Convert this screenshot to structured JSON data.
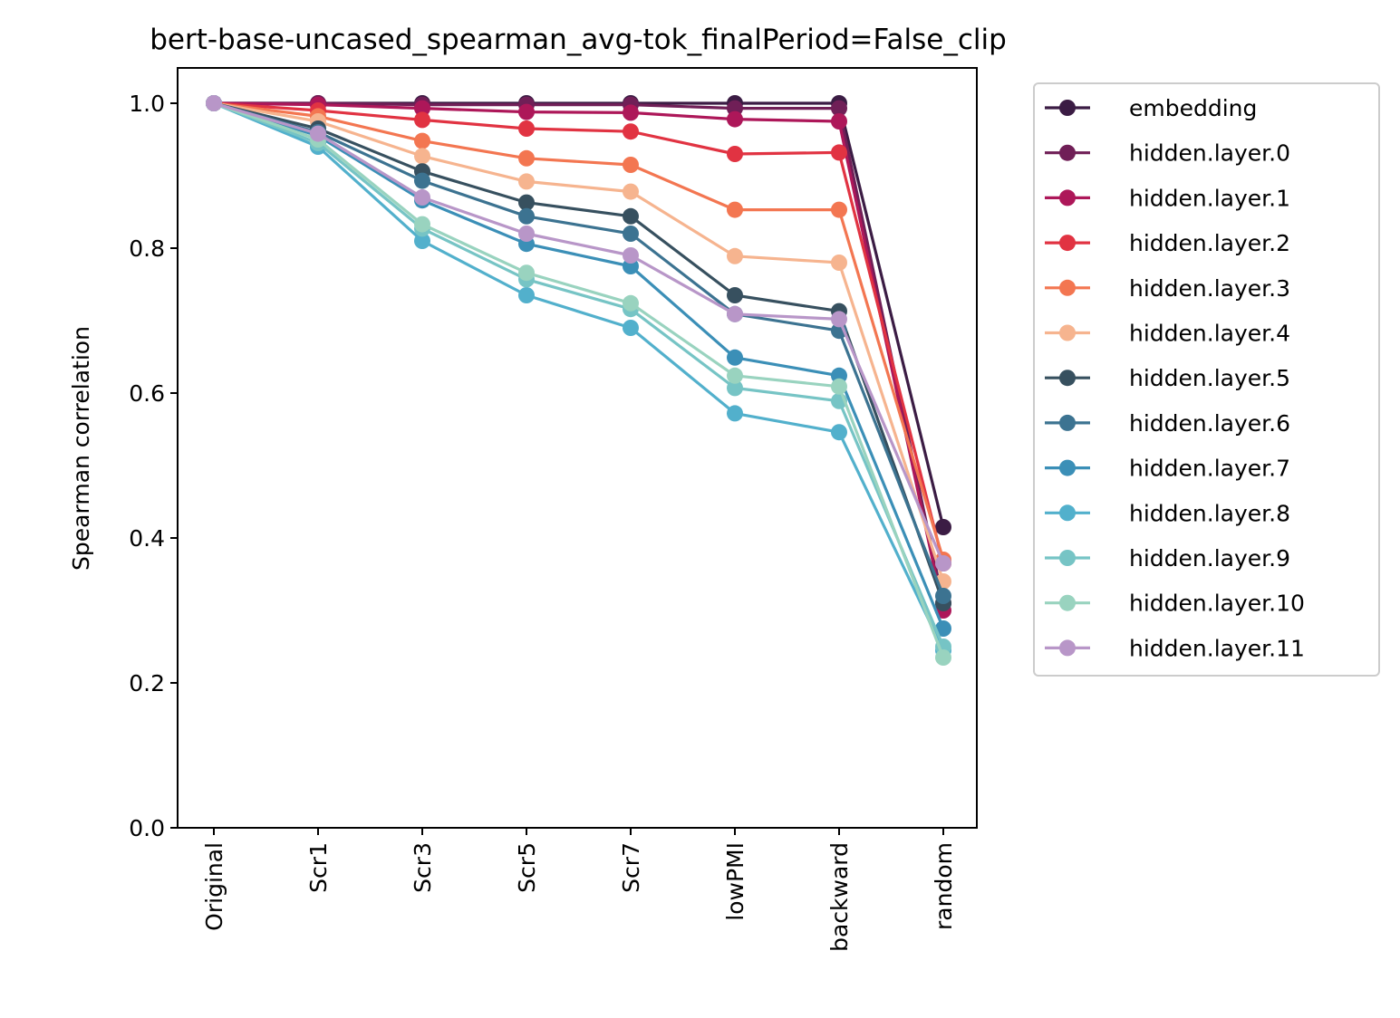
{
  "chart_data": {
    "type": "line",
    "title": "bert-base-uncased_spearman_avg-tok_finalPeriod=False_clip",
    "xlabel": "",
    "ylabel": "Spearman correlation",
    "categories": [
      "Original",
      "Scr1",
      "Scr3",
      "Scr5",
      "Scr7",
      "lowPMI",
      "backward",
      "random"
    ],
    "ylim": [
      0,
      1.05
    ],
    "yticks": [
      0.0,
      0.2,
      0.4,
      0.6,
      0.8,
      1.0
    ],
    "ytick_labels": [
      "0.0",
      "0.2",
      "0.4",
      "0.6",
      "0.8",
      "1.0"
    ],
    "grid": false,
    "legend_position": "outside-right",
    "marker": "circle",
    "series": [
      {
        "name": "embedding",
        "color": "#3b1c44",
        "values": [
          1.0,
          1.0,
          1.0,
          1.0,
          1.0,
          1.0,
          1.0,
          0.415
        ]
      },
      {
        "name": "hidden.layer.0",
        "color": "#701f57",
        "values": [
          1.0,
          1.0,
          0.998,
          0.998,
          0.998,
          0.993,
          0.993,
          0.31
        ]
      },
      {
        "name": "hidden.layer.1",
        "color": "#ad1759",
        "values": [
          1.0,
          0.998,
          0.993,
          0.988,
          0.987,
          0.978,
          0.975,
          0.3
        ]
      },
      {
        "name": "hidden.layer.2",
        "color": "#e13342",
        "values": [
          1.0,
          0.99,
          0.977,
          0.965,
          0.961,
          0.93,
          0.932,
          0.365
        ]
      },
      {
        "name": "hidden.layer.3",
        "color": "#f37651",
        "values": [
          1.0,
          0.982,
          0.948,
          0.924,
          0.915,
          0.853,
          0.853,
          0.37
        ]
      },
      {
        "name": "hidden.layer.4",
        "color": "#f6b48f",
        "values": [
          1.0,
          0.975,
          0.927,
          0.892,
          0.878,
          0.789,
          0.78,
          0.34
        ]
      },
      {
        "name": "hidden.layer.5",
        "color": "#37505f",
        "values": [
          1.0,
          0.965,
          0.906,
          0.863,
          0.844,
          0.735,
          0.713,
          0.31
        ]
      },
      {
        "name": "hidden.layer.6",
        "color": "#3c7391",
        "values": [
          1.0,
          0.96,
          0.893,
          0.844,
          0.82,
          0.709,
          0.686,
          0.32
        ]
      },
      {
        "name": "hidden.layer.7",
        "color": "#3b8fb7",
        "values": [
          1.0,
          0.955,
          0.866,
          0.806,
          0.775,
          0.649,
          0.624,
          0.275
        ]
      },
      {
        "name": "hidden.layer.8",
        "color": "#52b0cc",
        "values": [
          1.0,
          0.94,
          0.81,
          0.735,
          0.69,
          0.572,
          0.546,
          0.245
        ]
      },
      {
        "name": "hidden.layer.9",
        "color": "#76c4c5",
        "values": [
          1.0,
          0.945,
          0.827,
          0.757,
          0.716,
          0.607,
          0.589,
          0.25
        ]
      },
      {
        "name": "hidden.layer.10",
        "color": "#99d3bf",
        "values": [
          1.0,
          0.95,
          0.833,
          0.766,
          0.724,
          0.624,
          0.609,
          0.235
        ]
      },
      {
        "name": "hidden.layer.11",
        "color": "#b896c8",
        "values": [
          1.0,
          0.958,
          0.87,
          0.82,
          0.79,
          0.709,
          0.702,
          0.365
        ]
      }
    ]
  }
}
